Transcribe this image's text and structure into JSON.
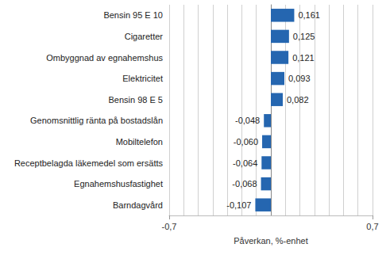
{
  "chart_data": {
    "type": "bar",
    "orientation": "horizontal",
    "categories": [
      "Bensin 95 E 10",
      "Cigaretter",
      "Ombyggnad av egnahemshus",
      "Elektricitet",
      "Bensin 98 E 5",
      "Genomsnittlig ränta på bostadslån",
      "Mobiltelefon",
      "Receptbelagda läkemedel som ersätts",
      "Egnahemshusfastighet",
      "Barndagvård"
    ],
    "values": [
      0.161,
      0.125,
      0.121,
      0.093,
      0.082,
      -0.048,
      -0.06,
      -0.064,
      -0.068,
      -0.107
    ],
    "value_labels": [
      "0,161",
      "0,125",
      "0,121",
      "0,093",
      "0,082",
      "-0,048",
      "-0,060",
      "-0,064",
      "-0,068",
      "-0,107"
    ],
    "data_labels": true,
    "color": "#2566b0",
    "x_label": "Påverkan, %-enhet",
    "xlim": [
      -0.7,
      0.7
    ],
    "xticks": [
      {
        "value": -0.7,
        "label": "-0,7"
      },
      {
        "value": 0.7,
        "label": "0,7"
      }
    ],
    "grid": true
  }
}
